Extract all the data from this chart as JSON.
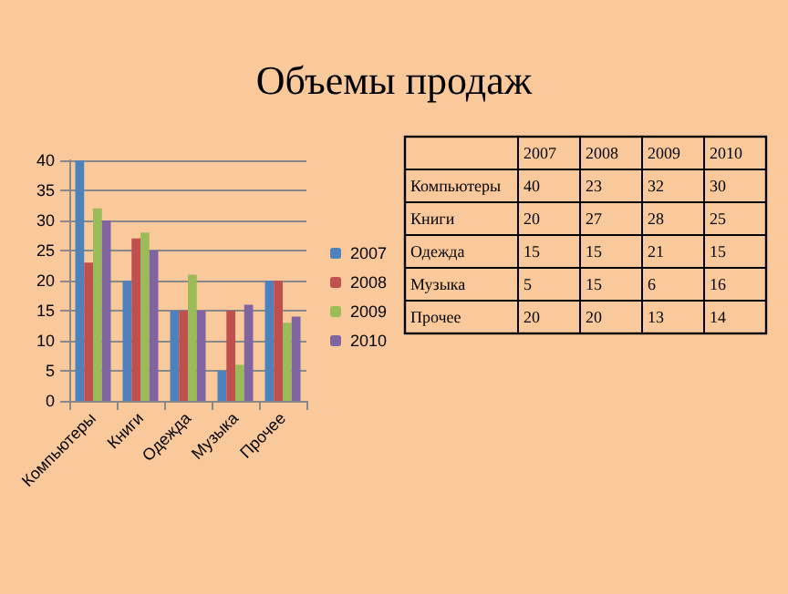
{
  "chart_data": [
    {
      "type": "bar",
      "title": "Объемы продаж",
      "categories": [
        "Компьютеры",
        "Книги",
        "Одежда",
        "Музыка",
        "Прочее"
      ],
      "series": [
        {
          "name": "2007",
          "color": "#4f81bd",
          "values": [
            40,
            20,
            15,
            5,
            20
          ]
        },
        {
          "name": "2008",
          "color": "#c0504d",
          "values": [
            23,
            27,
            15,
            15,
            20
          ]
        },
        {
          "name": "2009",
          "color": "#9bbb59",
          "values": [
            32,
            28,
            21,
            6,
            13
          ]
        },
        {
          "name": "2010",
          "color": "#8064a2",
          "values": [
            30,
            25,
            15,
            16,
            14
          ]
        }
      ],
      "ylim": [
        0,
        40
      ],
      "yticks": [
        0,
        5,
        10,
        15,
        20,
        25,
        30,
        35,
        40
      ],
      "grid": "y",
      "legend": "right"
    },
    {
      "type": "heatmap",
      "categories": [
        "2007",
        "2008",
        "2009",
        "2010"
      ],
      "y_categories": [
        "Компьютеры",
        "Книги",
        "Одежда",
        "Музыка",
        "Прочее"
      ],
      "cells": [
        [
          40,
          23,
          32,
          30
        ],
        [
          20,
          27,
          28,
          25
        ],
        [
          15,
          15,
          21,
          15
        ],
        [
          5,
          15,
          6,
          16
        ],
        [
          20,
          20,
          13,
          14
        ]
      ],
      "data_labels": true
    }
  ]
}
